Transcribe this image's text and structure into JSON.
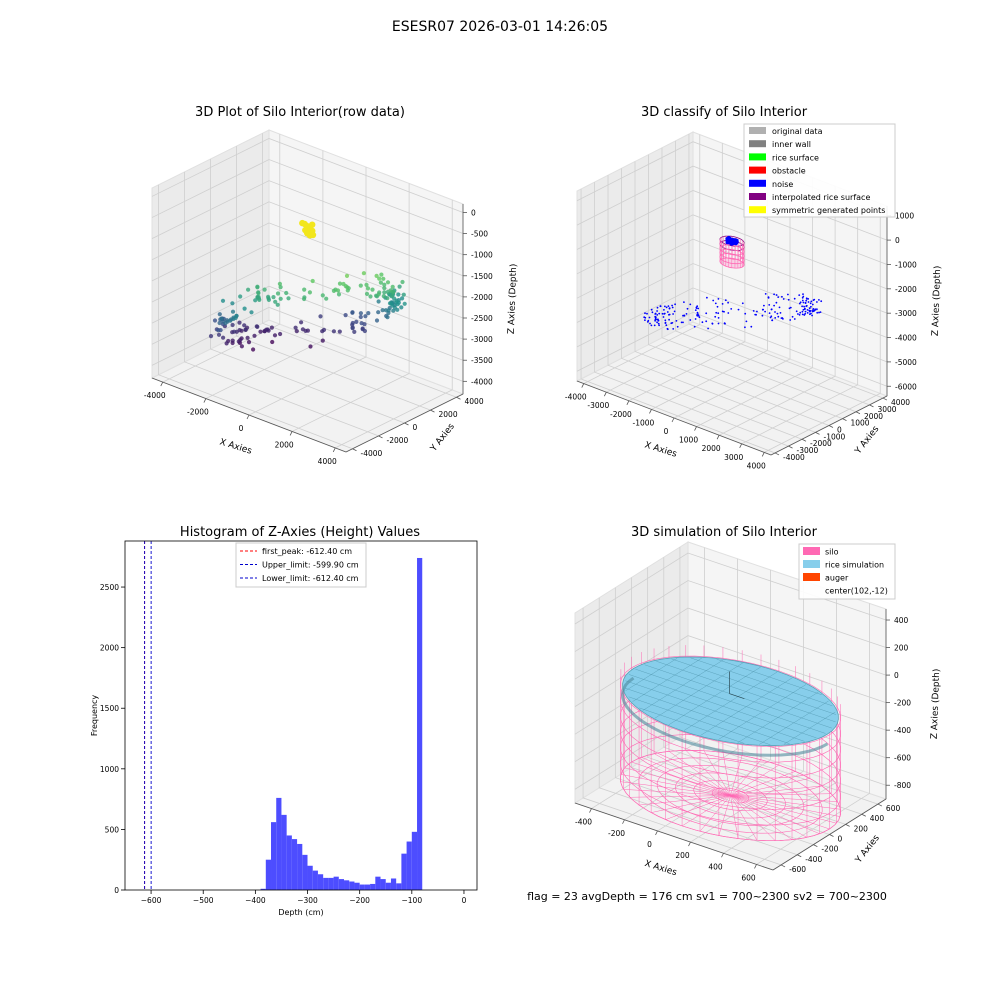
{
  "suptitle": "ESESR07 2026-03-01 14:26:05",
  "chart_data": [
    {
      "type": "scatter3d",
      "title": "3D Plot of Silo Interior(row data)",
      "xlabel": "X Axies",
      "ylabel": "Y Axies",
      "zlabel": "Z Axies (Depth)",
      "xticks": [
        "-4000",
        "-2000",
        "0",
        "2000",
        "4000"
      ],
      "yticks": [
        "-4000",
        "-2000",
        "0",
        "2000",
        "4000"
      ],
      "zticks": [
        "0",
        "-500",
        "-1000",
        "-1500",
        "-2000",
        "-2500",
        "-3000",
        "-3500",
        "-4000"
      ],
      "xlim": [
        -4500,
        4500
      ],
      "ylim": [
        -4500,
        4500
      ],
      "zlim": [
        -4300,
        200
      ],
      "colormap": "viridis",
      "ring_radius": 3800,
      "highlight_color": "#f2e61c"
    },
    {
      "type": "scatter3d",
      "title": "3D classify of Silo Interior",
      "xlabel": "X Axies",
      "ylabel": "Y Axies",
      "zlabel": "Z Axies (Depth)",
      "xticks": [
        "-4000",
        "-3000",
        "-2000",
        "-1000",
        "0",
        "1000",
        "2000",
        "3000",
        "4000"
      ],
      "yticks": [
        "-4000",
        "-3000",
        "-2000",
        "-1000",
        "0",
        "1000",
        "2000",
        "3000",
        "4000"
      ],
      "zticks": [
        "1000",
        "0",
        "-1000",
        "-2000",
        "-3000",
        "-4000",
        "-5000",
        "-6000"
      ],
      "xlim": [
        -4300,
        4300
      ],
      "ylim": [
        -4300,
        4300
      ],
      "zlim": [
        -6400,
        1400
      ],
      "legend": [
        {
          "label": "original data",
          "color": "#b0b0b0"
        },
        {
          "label": "inner wall",
          "color": "#808080"
        },
        {
          "label": "rice surface",
          "color": "#00ff00"
        },
        {
          "label": "obstacle",
          "color": "#ff0000"
        },
        {
          "label": "noise",
          "color": "#0000ff"
        },
        {
          "label": "interpolated rice surface",
          "color": "#800080"
        },
        {
          "label": "symmetric generated points",
          "color": "#ffff00"
        }
      ],
      "legend_loc": "upper right"
    },
    {
      "type": "bar",
      "title": "Histogram of Z-Axies (Height) Values",
      "xlabel": "Depth (cm)",
      "ylabel": "Frequency",
      "xlim": [
        -650,
        25
      ],
      "ylim": [
        0,
        2880
      ],
      "xticks": [
        -600,
        -500,
        -400,
        -300,
        -200,
        -100,
        0
      ],
      "yticks": [
        0,
        500,
        1000,
        1500,
        2000,
        2500
      ],
      "bin_width": 10,
      "bar_color": "#4d4dff",
      "bins": [
        {
          "x": -390,
          "y": 10
        },
        {
          "x": -380,
          "y": 250
        },
        {
          "x": -370,
          "y": 560
        },
        {
          "x": -360,
          "y": 760
        },
        {
          "x": -350,
          "y": 620
        },
        {
          "x": -340,
          "y": 450
        },
        {
          "x": -330,
          "y": 420
        },
        {
          "x": -320,
          "y": 380
        },
        {
          "x": -310,
          "y": 290
        },
        {
          "x": -300,
          "y": 200
        },
        {
          "x": -290,
          "y": 160
        },
        {
          "x": -280,
          "y": 130
        },
        {
          "x": -270,
          "y": 100
        },
        {
          "x": -260,
          "y": 100
        },
        {
          "x": -250,
          "y": 110
        },
        {
          "x": -240,
          "y": 90
        },
        {
          "x": -230,
          "y": 80
        },
        {
          "x": -220,
          "y": 70
        },
        {
          "x": -210,
          "y": 60
        },
        {
          "x": -200,
          "y": 45
        },
        {
          "x": -190,
          "y": 45
        },
        {
          "x": -180,
          "y": 50
        },
        {
          "x": -170,
          "y": 110
        },
        {
          "x": -160,
          "y": 90
        },
        {
          "x": -150,
          "y": 60
        },
        {
          "x": -140,
          "y": 95
        },
        {
          "x": -130,
          "y": 55
        },
        {
          "x": -120,
          "y": 300
        },
        {
          "x": -110,
          "y": 400
        },
        {
          "x": -100,
          "y": 480
        },
        {
          "x": -90,
          "y": 2740
        }
      ],
      "vlines": [
        {
          "label": "first_peak: -612.40 cm",
          "x": -612.4,
          "color": "#ff0000"
        },
        {
          "label": "Upper_limit: -599.90 cm",
          "x": -599.9,
          "color": "#0000cc"
        },
        {
          "label": "Lower_limit: -612.40 cm",
          "x": -612.4,
          "color": "#0000cc"
        }
      ],
      "legend_loc": "upper center"
    },
    {
      "type": "surface3d",
      "title": "3D simulation of Silo Interior",
      "xlabel": "X Axies",
      "ylabel": "Y Axies",
      "zlabel": "Z Axies (Depth)",
      "xticks": [
        "-400",
        "-200",
        "0",
        "200",
        "400",
        "600"
      ],
      "yticks": [
        "-600",
        "-400",
        "-200",
        "0",
        "200",
        "400",
        "600"
      ],
      "zticks": [
        "400",
        "200",
        "0",
        "-200",
        "-400",
        "-600",
        "-800"
      ],
      "xlim": [
        -500,
        700
      ],
      "ylim": [
        -700,
        700
      ],
      "zlim": [
        -900,
        480
      ],
      "silo_radius": 600,
      "rice_level": -176,
      "legend": [
        {
          "label": "silo",
          "color": "#ff69b4"
        },
        {
          "label": "rice simulation",
          "color": "#87ceeb"
        },
        {
          "label": "auger",
          "color": "#ff4500"
        },
        {
          "label": "center(102,-12)",
          "color": ""
        }
      ],
      "legend_loc": "upper right",
      "footer": "flag = 23   avgDepth = 176 cm   sv1 = 700~2300   sv2 = 700~2300"
    }
  ]
}
